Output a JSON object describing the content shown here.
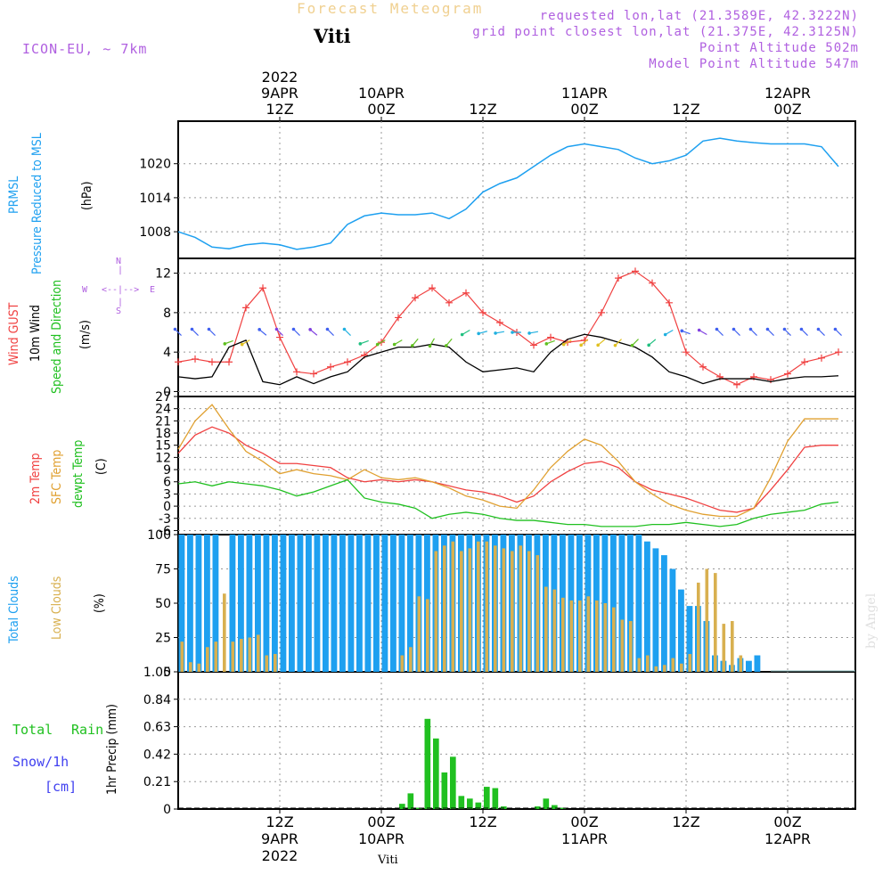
{
  "header": {
    "top_title": "Forecast Meteogram",
    "station": "Viti",
    "model": "ICON-EU, ~ 7km",
    "requested": "requested lon,lat (21.3589E, 42.3222N)",
    "grid_point": "grid point closest lon,lat (21.375E, 42.3125N)",
    "point_alt": "Point Altitude 502m",
    "model_alt": "Model Point Altitude 547m",
    "credit": "by Angel",
    "footer_station": "Viti"
  },
  "time_axis": {
    "year": "2022",
    "ticks": [
      {
        "hour": 12,
        "label": "12Z",
        "date": "9APR"
      },
      {
        "hour": 24,
        "label": "00Z",
        "date": "10APR"
      },
      {
        "hour": 36,
        "label": "12Z",
        "date": ""
      },
      {
        "hour": 48,
        "label": "00Z",
        "date": "11APR"
      },
      {
        "hour": 60,
        "label": "12Z",
        "date": ""
      },
      {
        "hour": 72,
        "label": "00Z",
        "date": "12APR"
      }
    ]
  },
  "labels": {
    "prmsl_1": "PRMSL",
    "prmsl_2": "Pressure Reduced to MSL",
    "prmsl_unit": "(hPa)",
    "gust": "Wind GUST",
    "wind10": "10m Wind",
    "wind_dir": "Speed and Direction",
    "wind_unit": "(m/s)",
    "t2m": "2m Temp",
    "tsfc": "SFC Temp",
    "td": "dewpt Temp",
    "temp_unit": "(C)",
    "tcc": "Total Clouds",
    "lcc": "Low Clouds",
    "cloud_unit": "(%)",
    "rain_total": "Total",
    "rain_rain": "Rain",
    "snow": "Snow/1h",
    "snow_unit": "[cm]",
    "precip_axis": "1hr Precip (mm)",
    "compass_n": "N",
    "compass_s": "S",
    "compass_w": "W",
    "compass_e": "E"
  },
  "colors": {
    "pressure": "#1ea0f0",
    "gust": "#f04040",
    "wind": "#000000",
    "wind_arrow": "#20c020",
    "t2m": "#f04040",
    "tsfc": "#e0a030",
    "td": "#20c020",
    "tcc": "#1ea0f0",
    "lcc": "#d8b050",
    "rain": "#20c020",
    "snow": "#4040f0",
    "purple": "#b060e0"
  },
  "chart_data": [
    {
      "type": "line",
      "title": "PRMSL Pressure Reduced to MSL",
      "ylabel": "(hPa)",
      "ylim": [
        1003.3,
        1027.5
      ],
      "yticks": [
        1008,
        1014,
        1020
      ],
      "x_hours": [
        0,
        2,
        4,
        6,
        8,
        10,
        12,
        14,
        16,
        18,
        20,
        22,
        24,
        26,
        28,
        30,
        32,
        34,
        36,
        38,
        40,
        42,
        44,
        46,
        48,
        50,
        52,
        54,
        56,
        58,
        60,
        62,
        64,
        66,
        68,
        70,
        72,
        74,
        76,
        78
      ],
      "series": [
        {
          "name": "PRMSL",
          "values": [
            1008,
            1007,
            1005.3,
            1005,
            1005.7,
            1006,
            1005.7,
            1004.9,
            1005.3,
            1006,
            1009.3,
            1010.8,
            1011.3,
            1011,
            1011,
            1011.3,
            1010.3,
            1012,
            1015,
            1016.5,
            1017.5,
            1019.5,
            1021.5,
            1023,
            1023.5,
            1023,
            1022.5,
            1021,
            1020,
            1020.5,
            1021.5,
            1024,
            1024.5,
            1024,
            1023.7,
            1023.5,
            1023.5,
            1023.5,
            1023,
            1019.5
          ]
        }
      ]
    },
    {
      "type": "line",
      "title": "Wind GUST / 10m Wind Speed and Direction",
      "ylabel": "(m/s)",
      "ylim": [
        -0.5,
        13.5
      ],
      "yticks": [
        0,
        4,
        8,
        12
      ],
      "x_hours": [
        0,
        2,
        4,
        6,
        8,
        10,
        12,
        14,
        16,
        18,
        20,
        22,
        24,
        26,
        28,
        30,
        32,
        34,
        36,
        38,
        40,
        42,
        44,
        46,
        48,
        50,
        52,
        54,
        56,
        58,
        60,
        62,
        64,
        66,
        68,
        70,
        72,
        74,
        76,
        78
      ],
      "series": [
        {
          "name": "Wind GUST",
          "values": [
            3,
            3.3,
            3,
            3,
            8.5,
            10.5,
            5.5,
            2,
            1.8,
            2.5,
            3,
            3.7,
            5,
            7.5,
            9.5,
            10.5,
            9,
            10,
            8,
            7,
            6,
            4.7,
            5.5,
            5,
            5.2,
            8,
            11.5,
            12.2,
            11,
            9,
            4,
            2.5,
            1.5,
            0.7,
            1.5,
            1.2,
            1.8,
            3,
            3.4,
            4
          ]
        },
        {
          "name": "10m Wind",
          "values": [
            1.5,
            1.3,
            1.5,
            4.5,
            5.2,
            1,
            0.7,
            1.5,
            0.8,
            1.5,
            2,
            3.5,
            4,
            4.5,
            4.5,
            4.8,
            4.5,
            3,
            2,
            2.2,
            2.4,
            2,
            4,
            5.3,
            5.8,
            5.5,
            5,
            4.5,
            3.5,
            2,
            1.5,
            0.8,
            1.3,
            1.3,
            1.3,
            1,
            1.3,
            1.5,
            1.5,
            1.6
          ]
        }
      ],
      "arrow_directions_deg": [
        225,
        225,
        225,
        290,
        300,
        230,
        225,
        225,
        230,
        225,
        225,
        290,
        300,
        300,
        320,
        330,
        320,
        300,
        285,
        280,
        270,
        280,
        290,
        300,
        310,
        310,
        315,
        315,
        310,
        300,
        250,
        240,
        225,
        225,
        225,
        225,
        225,
        225,
        225,
        225
      ]
    },
    {
      "type": "line",
      "title": "2m Temp / SFC Temp / dewpt Temp",
      "ylabel": "(C)",
      "ylim": [
        -7,
        27
      ],
      "yticks": [
        -6,
        -3,
        0,
        3,
        6,
        9,
        12,
        15,
        18,
        21,
        24,
        27
      ],
      "x_hours": [
        0,
        2,
        4,
        6,
        8,
        10,
        12,
        14,
        16,
        18,
        20,
        22,
        24,
        26,
        28,
        30,
        32,
        34,
        36,
        38,
        40,
        42,
        44,
        46,
        48,
        50,
        52,
        54,
        56,
        58,
        60,
        62,
        64,
        66,
        68,
        70,
        72,
        74,
        76,
        78
      ],
      "series": [
        {
          "name": "2m Temp",
          "values": [
            13,
            17.5,
            19.5,
            18,
            15,
            13,
            10.5,
            10.5,
            10,
            9.5,
            7,
            6,
            6.5,
            6,
            6.5,
            6,
            5,
            4,
            3.5,
            2.5,
            1,
            2.5,
            6,
            8.5,
            10.5,
            11,
            9.5,
            6,
            4,
            3,
            2,
            0.5,
            -1,
            -1.5,
            -0.5,
            4,
            9,
            14.5,
            15,
            15
          ]
        },
        {
          "name": "SFC Temp",
          "values": [
            14,
            21,
            25,
            19,
            13.5,
            11,
            8,
            9,
            8,
            7.5,
            6.5,
            9,
            7,
            6.5,
            7,
            6,
            4.5,
            2.5,
            1.5,
            0,
            -0.5,
            4,
            9.5,
            13.5,
            16.5,
            15,
            11,
            6,
            3,
            0.5,
            -1,
            -2,
            -2.5,
            -2.5,
            -0.5,
            7,
            16,
            21.5,
            21.5,
            21.5
          ]
        },
        {
          "name": "dewpt Temp",
          "values": [
            5.5,
            6,
            5,
            6,
            5.5,
            5,
            4,
            2.5,
            3.5,
            5,
            6.5,
            2,
            1,
            0.5,
            -0.5,
            -3,
            -2,
            -1.5,
            -2,
            -3,
            -3.5,
            -3.5,
            -4,
            -4.5,
            -4.5,
            -5,
            -5,
            -5,
            -4.5,
            -4.5,
            -4,
            -4.5,
            -5,
            -4.5,
            -3,
            -2,
            -1.5,
            -1,
            0.5,
            1
          ]
        }
      ]
    },
    {
      "type": "bar",
      "title": "Total Clouds / Low Clouds",
      "ylabel": "(%)",
      "ylim": [
        0,
        100
      ],
      "yticks": [
        0,
        25,
        50,
        75,
        100
      ],
      "x_hours": [
        0,
        1,
        2,
        3,
        4,
        5,
        6,
        7,
        8,
        9,
        10,
        11,
        12,
        13,
        14,
        15,
        16,
        17,
        18,
        19,
        20,
        21,
        22,
        23,
        24,
        25,
        26,
        27,
        28,
        29,
        30,
        31,
        32,
        33,
        34,
        35,
        36,
        37,
        38,
        39,
        40,
        41,
        42,
        43,
        44,
        45,
        46,
        47,
        48,
        49,
        50,
        51,
        52,
        53,
        54,
        55,
        56,
        57,
        58,
        59,
        60,
        61,
        62,
        63,
        64,
        65,
        66,
        67,
        68,
        69,
        70,
        71,
        72,
        73,
        74,
        75,
        76,
        77,
        78,
        79
      ],
      "series": [
        {
          "name": "Total Clouds",
          "values": [
            100,
            100,
            100,
            100,
            100,
            0,
            100,
            100,
            100,
            100,
            100,
            100,
            100,
            100,
            100,
            100,
            100,
            100,
            100,
            100,
            100,
            100,
            100,
            100,
            100,
            100,
            100,
            100,
            100,
            100,
            100,
            100,
            100,
            100,
            100,
            100,
            100,
            100,
            100,
            100,
            100,
            100,
            100,
            100,
            100,
            100,
            100,
            100,
            100,
            100,
            100,
            100,
            100,
            100,
            100,
            95,
            90,
            85,
            75,
            60,
            48,
            48,
            37,
            12,
            8,
            5,
            10,
            8,
            12,
            0,
            0,
            0,
            0,
            0,
            0,
            0,
            0,
            0,
            0,
            0
          ]
        },
        {
          "name": "Low Clouds",
          "values": [
            22,
            7,
            6,
            18,
            22,
            57,
            22,
            24,
            25,
            27,
            12,
            13,
            0,
            0,
            0,
            0,
            0,
            0,
            0,
            0,
            0,
            0,
            0,
            0,
            0,
            0,
            12,
            18,
            55,
            53,
            88,
            92,
            95,
            88,
            90,
            95,
            95,
            92,
            90,
            88,
            92,
            88,
            85,
            62,
            60,
            54,
            52,
            52,
            55,
            52,
            50,
            47,
            38,
            37,
            10,
            12,
            4,
            5,
            10,
            6,
            13,
            65,
            75,
            72,
            35,
            37,
            12,
            0,
            0,
            0,
            0,
            0,
            0,
            0,
            0,
            0,
            0,
            0,
            0,
            0
          ]
        }
      ]
    },
    {
      "type": "bar",
      "title": "Total Rain / Snow 1h",
      "ylabel": "1hr Precip (mm)",
      "ylim": [
        0,
        1.05
      ],
      "yticks": [
        0,
        0.21,
        0.42,
        0.63,
        0.84,
        1.05
      ],
      "x_hours": [
        0,
        1,
        2,
        3,
        4,
        5,
        6,
        7,
        8,
        9,
        10,
        11,
        12,
        13,
        14,
        15,
        16,
        17,
        18,
        19,
        20,
        21,
        22,
        23,
        24,
        25,
        26,
        27,
        28,
        29,
        30,
        31,
        32,
        33,
        34,
        35,
        36,
        37,
        38,
        39,
        40,
        41,
        42,
        43,
        44,
        45,
        46,
        47,
        48,
        49,
        50,
        51,
        52,
        53,
        54,
        55,
        56,
        57,
        58,
        59,
        60,
        61,
        62,
        63,
        64,
        65,
        66,
        67,
        68,
        69,
        70,
        71,
        72,
        73,
        74,
        75,
        76,
        77,
        78,
        79
      ],
      "series": [
        {
          "name": "Total Rain",
          "values": [
            0,
            0,
            0,
            0,
            0,
            0,
            0,
            0,
            0,
            0,
            0,
            0,
            0,
            0,
            0,
            0,
            0,
            0,
            0,
            0,
            0,
            0,
            0,
            0,
            0,
            0,
            0.04,
            0.12,
            0.01,
            0.69,
            0.54,
            0.28,
            0.4,
            0.1,
            0.08,
            0.05,
            0.17,
            0.16,
            0.02,
            0,
            0,
            0,
            0.02,
            0.08,
            0.03,
            0.01,
            0,
            0,
            0,
            0,
            0,
            0,
            0,
            0,
            0,
            0,
            0,
            0,
            0,
            0,
            0,
            0,
            0,
            0,
            0,
            0,
            0,
            0,
            0,
            0,
            0,
            0,
            0,
            0,
            0,
            0,
            0,
            0,
            0,
            0
          ]
        },
        {
          "name": "Snow/1h",
          "values": [
            0,
            0,
            0,
            0,
            0,
            0,
            0,
            0,
            0,
            0,
            0,
            0,
            0,
            0,
            0,
            0,
            0,
            0,
            0,
            0,
            0,
            0,
            0,
            0,
            0,
            0,
            0,
            0,
            0,
            0,
            0,
            0,
            0,
            0,
            0,
            0,
            0,
            0,
            0,
            0,
            0,
            0,
            0,
            0,
            0,
            0,
            0,
            0,
            0,
            0,
            0,
            0,
            0,
            0,
            0,
            0,
            0,
            0,
            0,
            0,
            0,
            0,
            0,
            0,
            0,
            0,
            0,
            0,
            0,
            0,
            0,
            0,
            0,
            0,
            0,
            0,
            0,
            0,
            0,
            0
          ]
        }
      ]
    }
  ]
}
